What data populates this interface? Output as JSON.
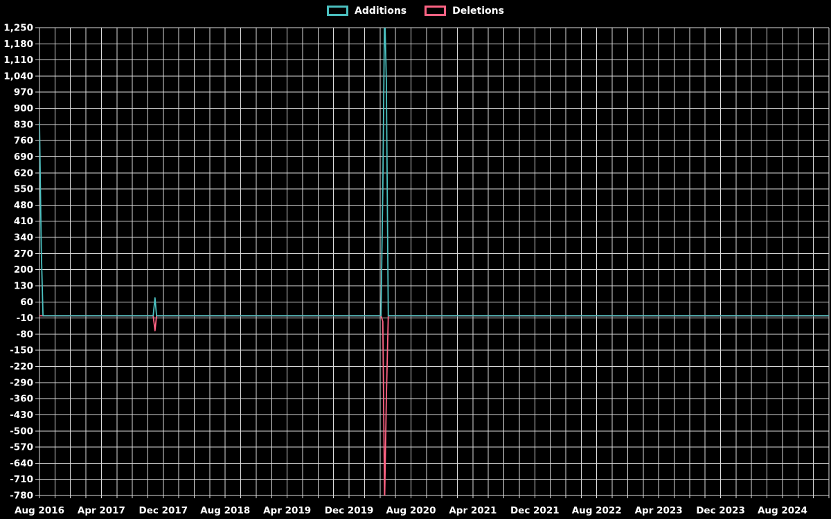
{
  "chart": {
    "background": "#000000",
    "grid_color": "#dddddd",
    "text_color": "#ffffff"
  },
  "legend": {
    "items": [
      {
        "label": "Additions",
        "color": "#4bc0c0"
      },
      {
        "label": "Deletions",
        "color": "#ff6384"
      }
    ]
  },
  "chart_data": {
    "type": "line",
    "title": "",
    "legend_position": "top",
    "grid": true,
    "x_axis": {
      "tick_labels": [
        "Aug 2016",
        "Apr 2017",
        "Dec 2017",
        "Aug 2018",
        "Apr 2019",
        "Dec 2019",
        "Aug 2020",
        "Apr 2021",
        "Dec 2021",
        "Aug 2022",
        "Apr 2023",
        "Dec 2023",
        "Aug 2024"
      ],
      "tick_month_offsets": [
        0,
        8,
        16,
        24,
        32,
        40,
        48,
        56,
        64,
        72,
        80,
        88,
        96
      ],
      "start_month": "2016-08",
      "end_month_offset": 102,
      "grid_step_months": 2
    },
    "y_axis": {
      "min": -780,
      "max": 1250,
      "tick_step": 70,
      "tick_labels": [
        "1,250",
        "1,180",
        "1,110",
        "1,040",
        "970",
        "900",
        "830",
        "760",
        "690",
        "620",
        "550",
        "480",
        "410",
        "340",
        "270",
        "200",
        "130",
        "60",
        "-10",
        "-80",
        "-150",
        "-220",
        "-290",
        "-360",
        "-430",
        "-500",
        "-570",
        "-640",
        "-710",
        "-780"
      ]
    },
    "series": [
      {
        "name": "Additions",
        "color": "#4bc0c0",
        "baseline": 0,
        "points": [
          [
            "2016-08-01",
            840
          ],
          [
            "2016-08-08",
            290
          ],
          [
            "2016-08-15",
            0
          ],
          [
            "2017-10-22",
            0
          ],
          [
            "2017-10-29",
            78
          ],
          [
            "2017-11-05",
            0
          ],
          [
            "2020-04-05",
            0
          ],
          [
            "2020-04-12",
            548
          ],
          [
            "2020-04-19",
            1340
          ],
          [
            "2020-04-26",
            1020
          ],
          [
            "2020-05-03",
            0
          ],
          [
            "2025-02-01",
            0
          ]
        ]
      },
      {
        "name": "Deletions",
        "color": "#ff6384",
        "baseline": 0,
        "points": [
          [
            "2016-08-01",
            0
          ],
          [
            "2017-10-22",
            0
          ],
          [
            "2017-10-29",
            -65
          ],
          [
            "2017-11-05",
            0
          ],
          [
            "2020-04-05",
            0
          ],
          [
            "2020-04-12",
            -25
          ],
          [
            "2020-04-19",
            -800
          ],
          [
            "2020-04-26",
            -360
          ],
          [
            "2020-05-03",
            0
          ],
          [
            "2025-02-01",
            0
          ]
        ]
      }
    ]
  }
}
